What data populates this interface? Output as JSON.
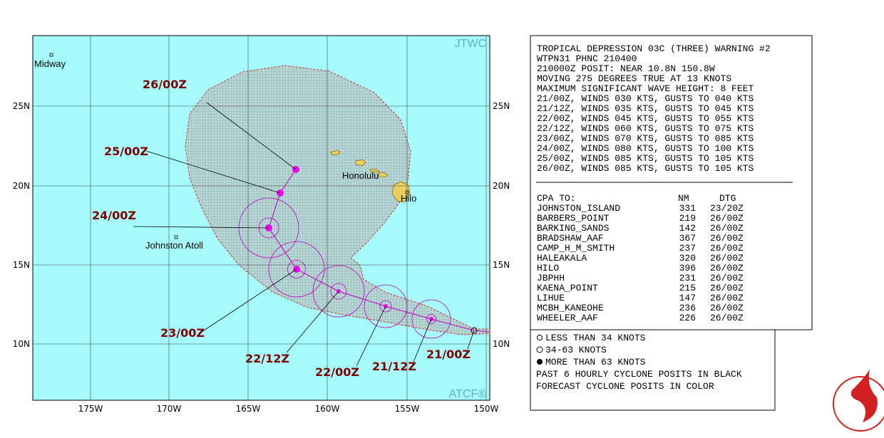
{
  "map": {
    "source_label": "JTWC",
    "footer_label": "ATCF®",
    "places": [
      "Midway",
      "Honolulu",
      "Hilo",
      "Johnston Atoll"
    ],
    "lat_labels": [
      "25N",
      "20N",
      "15N",
      "10N"
    ],
    "lon_labels": [
      "175W",
      "170W",
      "165W",
      "160W",
      "155W",
      "150W"
    ],
    "track_labels": [
      "26/00Z",
      "25/00Z",
      "24/00Z",
      "23/00Z",
      "22/12Z",
      "22/00Z",
      "21/12Z",
      "21/00Z"
    ]
  },
  "warning": {
    "lines": [
      "TROPICAL DEPRESSION 03C (THREE) WARNING #2",
      "WTPN31 PHNC 210400",
      "210000Z POSIT: NEAR 10.8N 150.8W",
      "MOVING 275 DEGREES TRUE AT 13 KNOTS",
      "MAXIMUM SIGNIFICANT WAVE HEIGHT: 8 FEET",
      "21/00Z, WINDS 030 KTS, GUSTS TO 040 KTS",
      "21/12Z, WINDS 035 KTS, GUSTS TO 045 KTS",
      "22/00Z, WINDS 045 KTS, GUSTS TO 055 KTS",
      "22/12Z, WINDS 060 KTS, GUSTS TO 075 KTS",
      "23/00Z, WINDS 070 KTS, GUSTS TO 085 KTS",
      "24/00Z, WINDS 080 KTS, GUSTS TO 100 KTS",
      "25/00Z, WINDS 085 KTS, GUSTS TO 105 KTS",
      "26/00Z, WINDS 085 KTS, GUSTS TO 105 KTS"
    ],
    "cpa_header": [
      "CPA TO:",
      "NM",
      "DTG"
    ],
    "cpa_rows": [
      [
        "JOHNSTON_ISLAND",
        331,
        "23/20Z"
      ],
      [
        "BARBERS_POINT",
        219,
        "26/00Z"
      ],
      [
        "BARKING_SANDS",
        142,
        "26/00Z"
      ],
      [
        "BRADSHAW_AAF",
        367,
        "26/00Z"
      ],
      [
        "CAMP_H_M_SMITH",
        237,
        "26/00Z"
      ],
      [
        "HALEAKALA",
        320,
        "26/00Z"
      ],
      [
        "HILO",
        396,
        "26/00Z"
      ],
      [
        "JBPHH",
        231,
        "26/00Z"
      ],
      [
        "KAENA_POINT",
        215,
        "26/00Z"
      ],
      [
        "LIHUE",
        147,
        "26/00Z"
      ],
      [
        "MCBH_KANEOHE",
        236,
        "26/00Z"
      ],
      [
        "WHEELER_AAF",
        226,
        "26/00Z"
      ]
    ]
  },
  "legend": {
    "lines": [
      "LESS THAN 34 KNOTS",
      "34-63 KNOTS",
      "MORE THAN 63 KNOTS",
      "PAST 6 HOURLY CYCLONE POSITS IN BLACK",
      "FORECAST CYCLONE POSITS IN COLOR"
    ]
  }
}
